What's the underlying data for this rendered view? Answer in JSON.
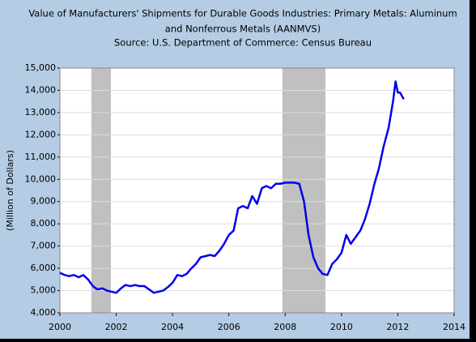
{
  "chart_data": {
    "type": "line",
    "title": [
      "Value of Manufacturers' Shipments for Durable Goods Industries: Primary Metals: Aluminum",
      "and Nonferrous Metals (AANMVS)",
      "Source: U.S. Department of Commerce: Census Bureau"
    ],
    "ylabel": "(Million of Dollars)",
    "xlim": [
      2000,
      2014
    ],
    "xticks": [
      2000,
      2002,
      2004,
      2006,
      2008,
      2010,
      2012,
      2014
    ],
    "ylim": [
      4000,
      15000
    ],
    "yticks": [
      {
        "value": 4000,
        "label": "4,000"
      },
      {
        "value": 5000,
        "label": "5,000"
      },
      {
        "value": 6000,
        "label": "6,000"
      },
      {
        "value": 7000,
        "label": "7,000"
      },
      {
        "value": 8000,
        "label": "8,000"
      },
      {
        "value": 9000,
        "label": "9,000"
      },
      {
        "value": 10000,
        "label": "10,000"
      },
      {
        "value": 11000,
        "label": "11,000"
      },
      {
        "value": 12000,
        "label": "12,000"
      },
      {
        "value": 13000,
        "label": "13,000"
      },
      {
        "value": 14000,
        "label": "14,000"
      },
      {
        "value": 15000,
        "label": "15,000"
      }
    ],
    "grid": true,
    "recessions": [
      [
        2001.12,
        2001.81
      ],
      [
        2007.9,
        2009.43
      ]
    ],
    "recession_color": "#c0c0c0",
    "series": [
      {
        "name": "AANMVS",
        "color": "#0000ee",
        "x": [
          2000.0,
          2000.17,
          2000.33,
          2000.5,
          2000.67,
          2000.83,
          2001.0,
          2001.17,
          2001.33,
          2001.5,
          2001.67,
          2001.83,
          2002.0,
          2002.17,
          2002.33,
          2002.5,
          2002.67,
          2002.83,
          2003.0,
          2003.17,
          2003.33,
          2003.5,
          2003.67,
          2003.83,
          2004.0,
          2004.17,
          2004.33,
          2004.5,
          2004.67,
          2004.83,
          2005.0,
          2005.17,
          2005.33,
          2005.5,
          2005.67,
          2005.83,
          2006.0,
          2006.17,
          2006.33,
          2006.5,
          2006.67,
          2006.83,
          2007.0,
          2007.17,
          2007.33,
          2007.5,
          2007.67,
          2007.83,
          2008.0,
          2008.17,
          2008.33,
          2008.5,
          2008.67,
          2008.83,
          2009.0,
          2009.17,
          2009.33,
          2009.5,
          2009.67,
          2009.83,
          2010.0,
          2010.17,
          2010.33,
          2010.5,
          2010.67,
          2010.83,
          2011.0,
          2011.17,
          2011.33,
          2011.5,
          2011.67,
          2011.83,
          2011.92,
          2012.0,
          2012.08,
          2012.21
        ],
        "values": [
          5800,
          5700,
          5650,
          5700,
          5600,
          5700,
          5500,
          5200,
          5050,
          5100,
          5000,
          4950,
          4900,
          5100,
          5250,
          5200,
          5250,
          5200,
          5200,
          5050,
          4900,
          4950,
          5000,
          5150,
          5350,
          5700,
          5650,
          5750,
          6000,
          6200,
          6500,
          6550,
          6600,
          6550,
          6800,
          7100,
          7500,
          7700,
          8700,
          8800,
          8700,
          9250,
          8900,
          9600,
          9700,
          9600,
          9800,
          9800,
          9850,
          9850,
          9850,
          9800,
          9000,
          7500,
          6500,
          6000,
          5750,
          5700,
          6200,
          6400,
          6700,
          7500,
          7100,
          7400,
          7700,
          8200,
          8900,
          9800,
          10500,
          11500,
          12300,
          13500,
          14400,
          13900,
          13900,
          13600
        ]
      }
    ]
  }
}
